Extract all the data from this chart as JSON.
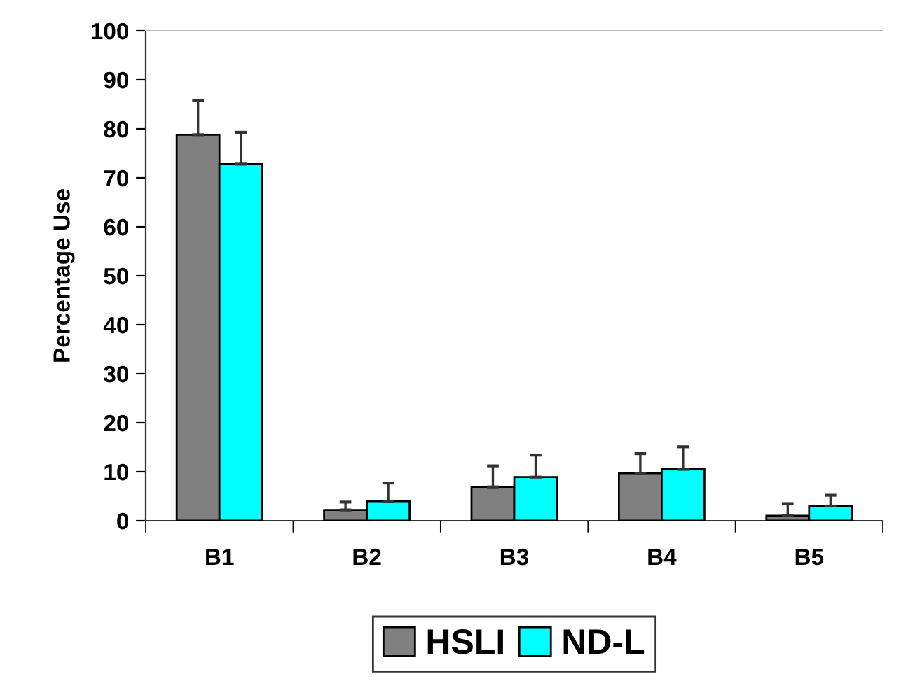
{
  "chart_data": {
    "type": "bar",
    "ylabel": "Percentage Use",
    "categories": [
      "B1",
      "B2",
      "B3",
      "B4",
      "B5"
    ],
    "series": [
      {
        "name": "HSLI",
        "color": "#808080",
        "values": [
          78.8,
          2.2,
          6.9,
          9.7,
          1.0
        ],
        "errors": [
          [
            78.8,
            85.8
          ],
          [
            2.2,
            3.8
          ],
          [
            6.9,
            11.2
          ],
          [
            9.7,
            13.7
          ],
          [
            1.0,
            3.5
          ]
        ]
      },
      {
        "name": "ND-L",
        "color": "#00ffff",
        "values": [
          72.8,
          4.0,
          8.9,
          10.5,
          3.0
        ],
        "errors": [
          [
            72.8,
            79.3
          ],
          [
            4.0,
            7.7
          ],
          [
            8.9,
            13.4
          ],
          [
            10.5,
            15.1
          ],
          [
            3.0,
            5.2
          ]
        ]
      }
    ],
    "ylim": [
      0,
      100
    ],
    "yticks": [
      0,
      10,
      20,
      30,
      40,
      50,
      60,
      70,
      80,
      90,
      100
    ],
    "grid": false,
    "legend": "bottom"
  }
}
